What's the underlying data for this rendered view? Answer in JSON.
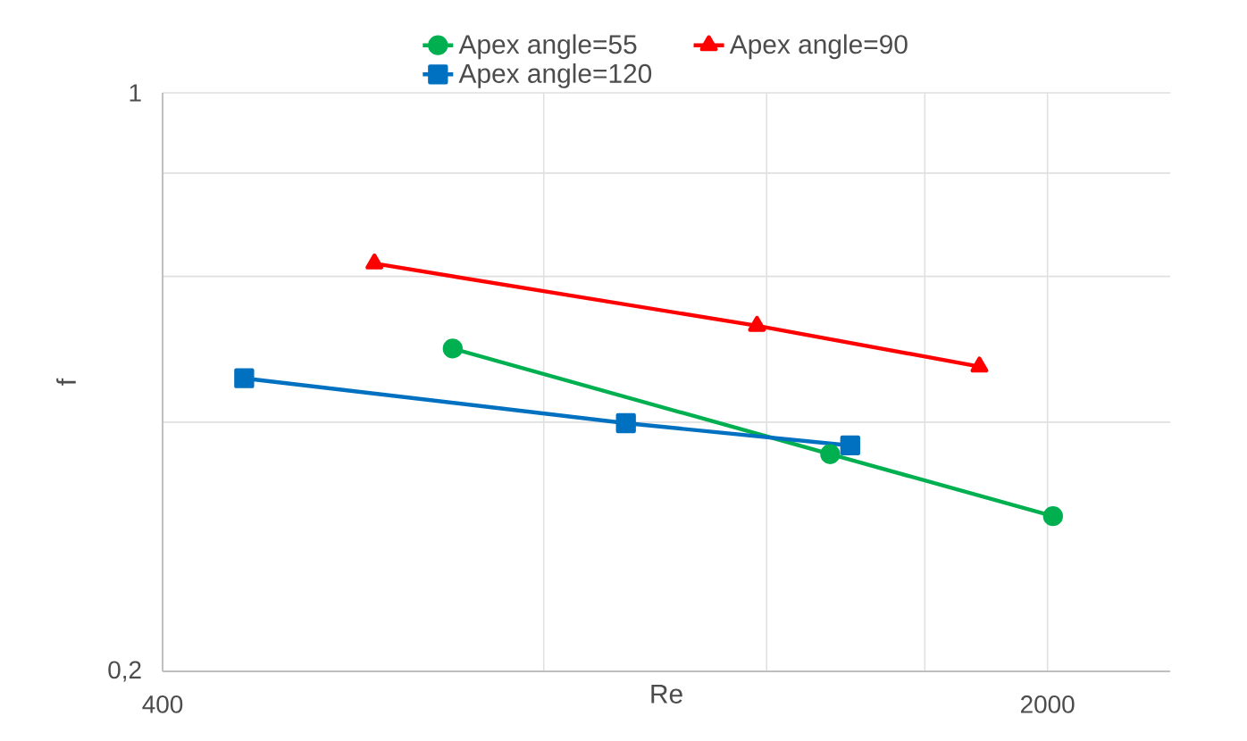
{
  "chart_data": {
    "type": "line",
    "xlabel": "Re",
    "ylabel": "f",
    "log": "xy",
    "grid": true,
    "legend": "top",
    "line_style": "solid",
    "xlim": [
      400,
      2500
    ],
    "ylim": [
      0.2,
      1
    ],
    "xticks": [
      400,
      {
        "value": 800,
        "label": null
      },
      {
        "value": 1200,
        "label": null
      },
      {
        "value": 1600,
        "label": null
      },
      2000
    ],
    "yticks": [
      {
        "value": 0.2,
        "label": "0,2"
      },
      {
        "value": 0.4,
        "label": null
      },
      {
        "value": 0.6,
        "label": null
      },
      {
        "value": 0.8,
        "label": null
      },
      1
    ],
    "series": [
      {
        "name": "Apex angle=55",
        "color": "#00b050",
        "marker": "circle",
        "x": [
          678,
          1347,
          2020
        ],
        "values": [
          0.491,
          0.366,
          0.308
        ]
      },
      {
        "name": "Apex angle=90",
        "color": "#ff0000",
        "marker": "triangle",
        "x": [
          588,
          1179,
          1767
        ],
        "values": [
          0.622,
          0.523,
          0.467
        ]
      },
      {
        "name": "Apex angle=120",
        "color": "#0070c0",
        "marker": "square",
        "x": [
          464,
          929,
          1397
        ],
        "values": [
          0.452,
          0.399,
          0.375
        ]
      }
    ]
  }
}
